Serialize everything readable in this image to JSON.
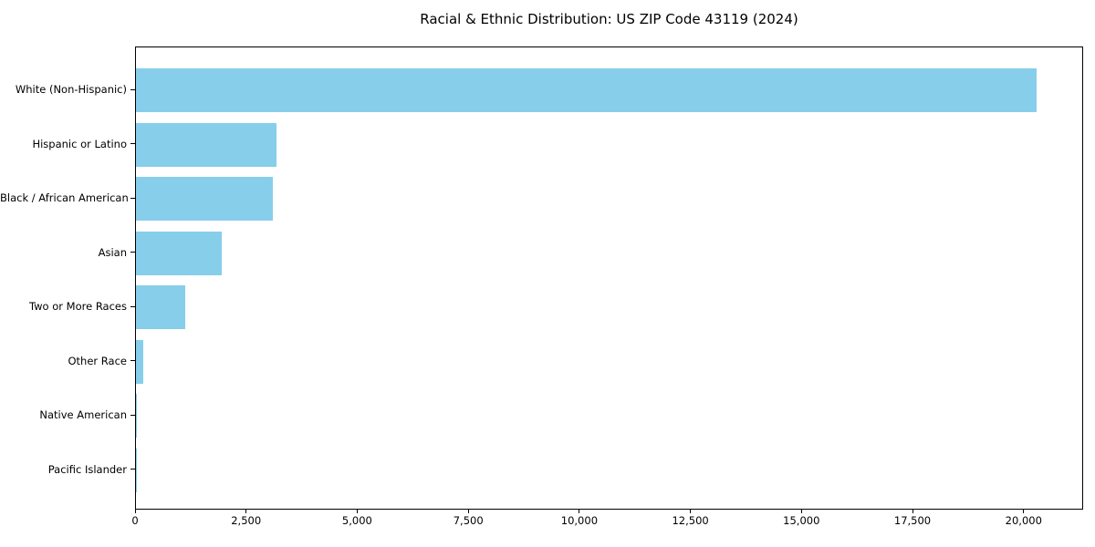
{
  "chart_data": {
    "type": "bar",
    "orientation": "horizontal",
    "title": "Racial & Ethnic Distribution: US ZIP Code 43119 (2024)",
    "categories": [
      "White (Non-Hispanic)",
      "Hispanic or Latino",
      "Black / African American",
      "Asian",
      "Two or More Races",
      "Other Race",
      "Native American",
      "Pacific Islander"
    ],
    "values": [
      20280,
      3170,
      3080,
      1920,
      1100,
      170,
      25,
      10
    ],
    "xlabel": "",
    "ylabel": "",
    "xlim": [
      0,
      21340
    ],
    "xticks": {
      "values": [
        0,
        2500,
        5000,
        7500,
        10000,
        12500,
        15000,
        17500,
        20000
      ],
      "labels": [
        "0",
        "2,500",
        "5,000",
        "7,500",
        "10,000",
        "12,500",
        "15,000",
        "17,500",
        "20,000"
      ]
    },
    "bar_color": "#87CEEB",
    "background_color": "#ffffff",
    "spine_color": "#000000",
    "text_color": "#000000",
    "grid": false,
    "legend": null
  }
}
